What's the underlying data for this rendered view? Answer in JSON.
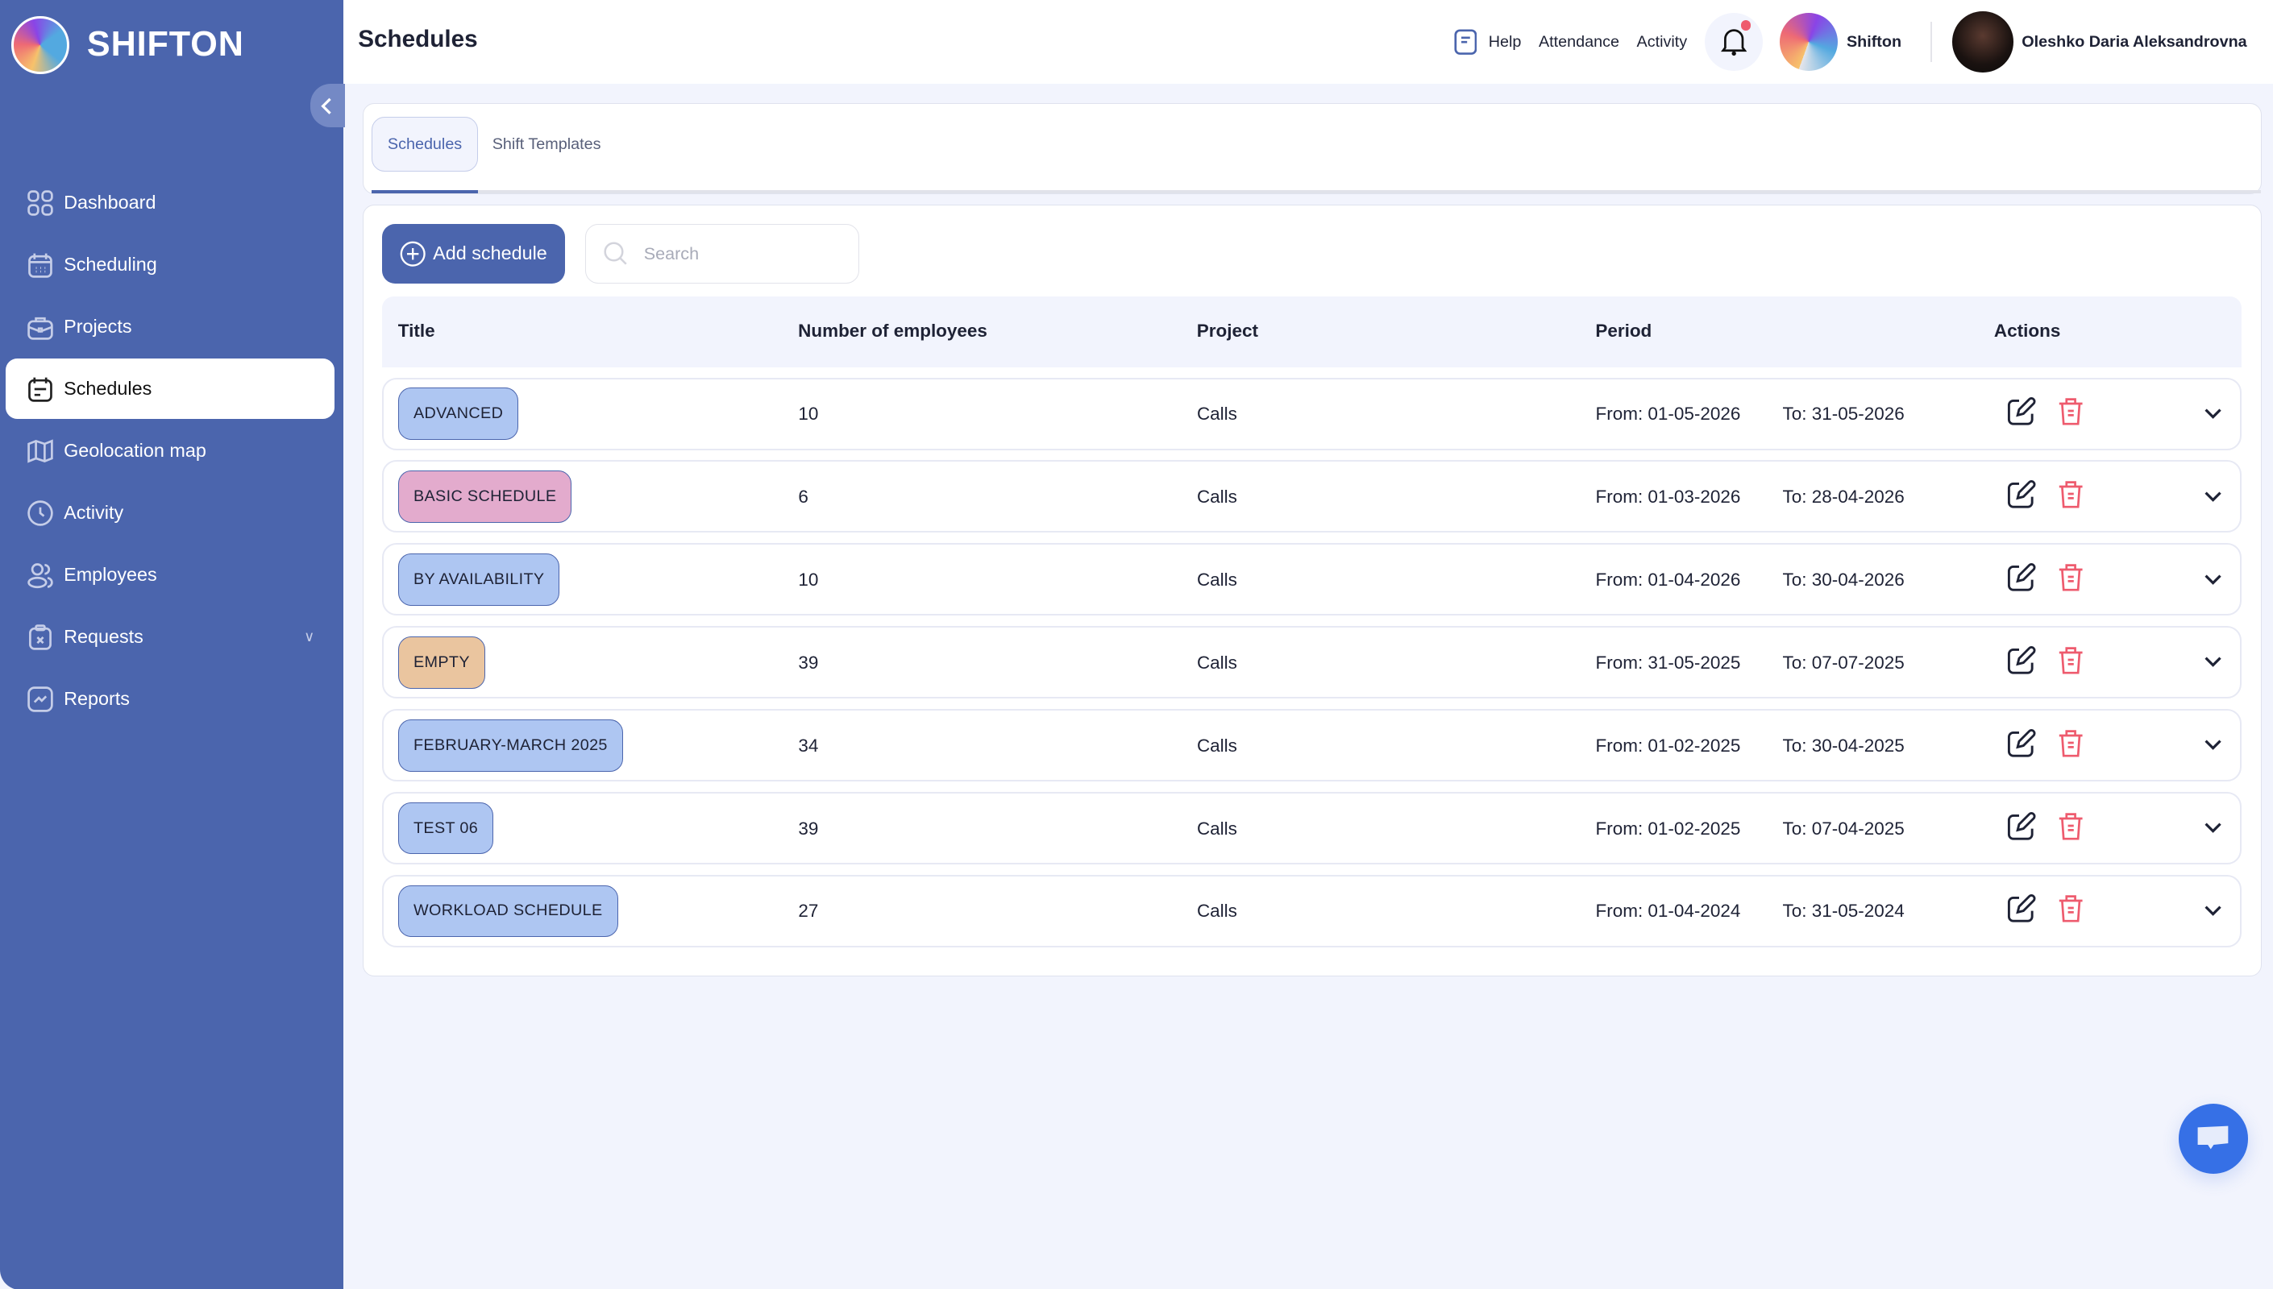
{
  "brand": {
    "name": "SHIFTON"
  },
  "sidebar": {
    "items": [
      {
        "label": "Dashboard",
        "icon": "grid-icon"
      },
      {
        "label": "Scheduling",
        "icon": "calendar-icon"
      },
      {
        "label": "Projects",
        "icon": "briefcase-icon"
      },
      {
        "label": "Schedules",
        "icon": "calendar-list-icon",
        "active": true
      },
      {
        "label": "Geolocation map",
        "icon": "map-icon"
      },
      {
        "label": "Activity",
        "icon": "clock-icon"
      },
      {
        "label": "Employees",
        "icon": "users-icon"
      },
      {
        "label": "Requests",
        "icon": "clipboard-x-icon",
        "has_submenu": true
      },
      {
        "label": "Reports",
        "icon": "chart-icon"
      }
    ]
  },
  "header": {
    "title": "Schedules",
    "help": "Help",
    "attendance": "Attendance",
    "activity": "Activity",
    "company": "Shifton",
    "user": "Oleshko Daria Aleksandrovna",
    "has_notification": true
  },
  "tabs": [
    {
      "label": "Schedules",
      "active": true
    },
    {
      "label": "Shift Templates"
    }
  ],
  "toolbar": {
    "add_label": "Add schedule",
    "search_placeholder": "Search",
    "search_value": ""
  },
  "table": {
    "columns": [
      "Title",
      "Number of employees",
      "Project",
      "Period",
      "Actions"
    ],
    "rows": [
      {
        "title": "ADVANCED",
        "color": "#aec6f2",
        "employees": "10",
        "project": "Calls",
        "from": "From: 01-05-2026",
        "to": "To: 31-05-2026"
      },
      {
        "title": "BASIC SCHEDULE",
        "color": "#e3abcd",
        "employees": "6",
        "project": "Calls",
        "from": "From: 01-03-2026",
        "to": "To: 28-04-2026"
      },
      {
        "title": "BY AVAILABILITY",
        "color": "#aec6f2",
        "employees": "10",
        "project": "Calls",
        "from": "From: 01-04-2026",
        "to": "To: 30-04-2026"
      },
      {
        "title": "EMPTY",
        "color": "#eac59f",
        "employees": "39",
        "project": "Calls",
        "from": "From: 31-05-2025",
        "to": "To: 07-07-2025"
      },
      {
        "title": "FEBRUARY-MARCH 2025",
        "color": "#aec6f2",
        "employees": "34",
        "project": "Calls",
        "from": "From: 01-02-2025",
        "to": "To: 30-04-2025"
      },
      {
        "title": "TEST 06",
        "color": "#aec6f2",
        "employees": "39",
        "project": "Calls",
        "from": "From: 01-02-2025",
        "to": "To: 07-04-2025"
      },
      {
        "title": "WORKLOAD SCHEDULE",
        "color": "#aec6f2",
        "employees": "27",
        "project": "Calls",
        "from": "From: 01-04-2024",
        "to": "To: 31-05-2024"
      }
    ]
  },
  "colors": {
    "sidebar": "#4b65ad",
    "accent": "#4b65ad",
    "delete": "#ee5b6e",
    "chat": "#3670e6"
  }
}
